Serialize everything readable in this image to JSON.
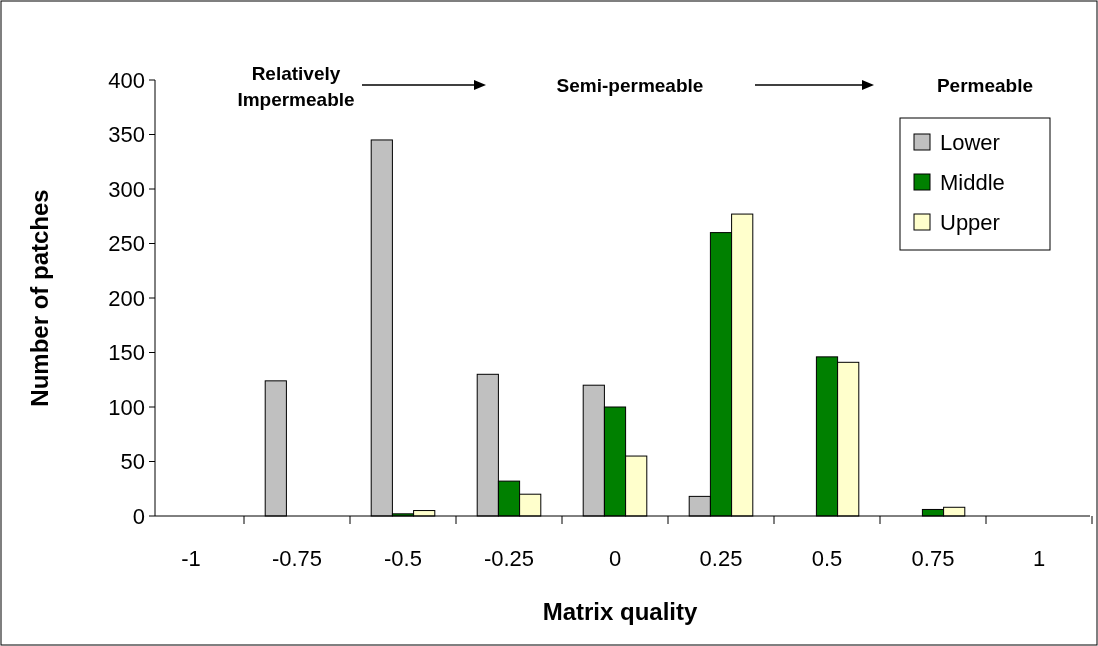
{
  "chart_data": {
    "type": "bar",
    "xlabel": "Matrix quality",
    "ylabel": "Number of patches",
    "categories": [
      "-1",
      "-0.75",
      "-0.5",
      "-0.25",
      "0",
      "0.25",
      "0.5",
      "0.75",
      "1"
    ],
    "series": [
      {
        "name": "Lower",
        "color": "#c0c0c0",
        "values": [
          0,
          124,
          345,
          130,
          120,
          18,
          0,
          0,
          0
        ]
      },
      {
        "name": "Middle",
        "color": "#008000",
        "values": [
          0,
          0,
          2,
          32,
          100,
          260,
          146,
          6,
          0
        ]
      },
      {
        "name": "Upper",
        "color": "#ffffcc",
        "values": [
          0,
          0,
          5,
          20,
          55,
          277,
          141,
          8,
          0
        ]
      }
    ],
    "ylim": [
      0,
      400
    ],
    "yticks": [
      0,
      50,
      100,
      150,
      200,
      250,
      300,
      350,
      400
    ],
    "grid": false,
    "legend": "top right",
    "annotations": [
      "Relatively\nImpermeable",
      "Semi-permeable",
      "Permeable"
    ]
  }
}
